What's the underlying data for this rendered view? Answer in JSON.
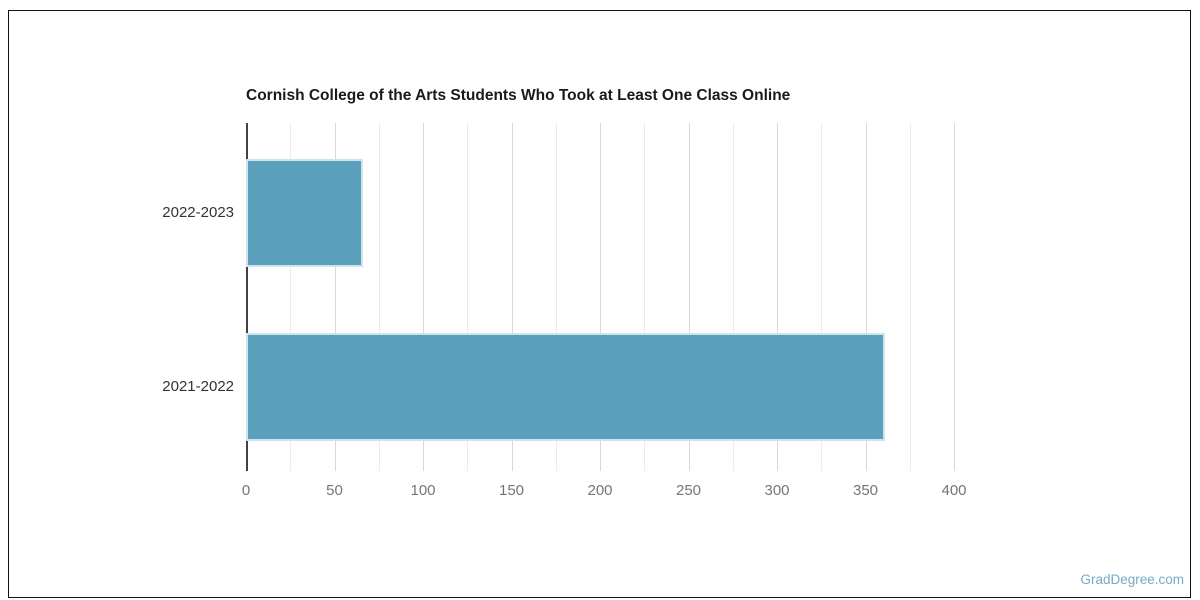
{
  "chart_data": {
    "type": "bar",
    "orientation": "horizontal",
    "title": "Cornish College of the Arts Students Who Took at Least One Class Online",
    "categories": [
      "2022-2023",
      "2021-2022"
    ],
    "values": [
      66,
      361
    ],
    "xlabel": "",
    "ylabel": "",
    "xlim": [
      0,
      400
    ],
    "tick_labels": [
      "0",
      "50",
      "100",
      "150",
      "200",
      "250",
      "300",
      "350",
      "400"
    ],
    "tick_step": 50,
    "grid_step": 25,
    "grid_on": true,
    "legend": "none",
    "colors": {
      "bar_fill": "#5a9fbb",
      "bar_stroke": "#cfe3ec",
      "grid_major": "#d9d9d9",
      "grid_minor": "#ececec",
      "axis_line": "#424242",
      "title_text": "#1a1a1a",
      "category_text": "#333333",
      "tick_text": "#757575",
      "frame_border": "#111111"
    }
  },
  "watermark": {
    "label": "GradDegree.com",
    "color": "#74aac4"
  }
}
